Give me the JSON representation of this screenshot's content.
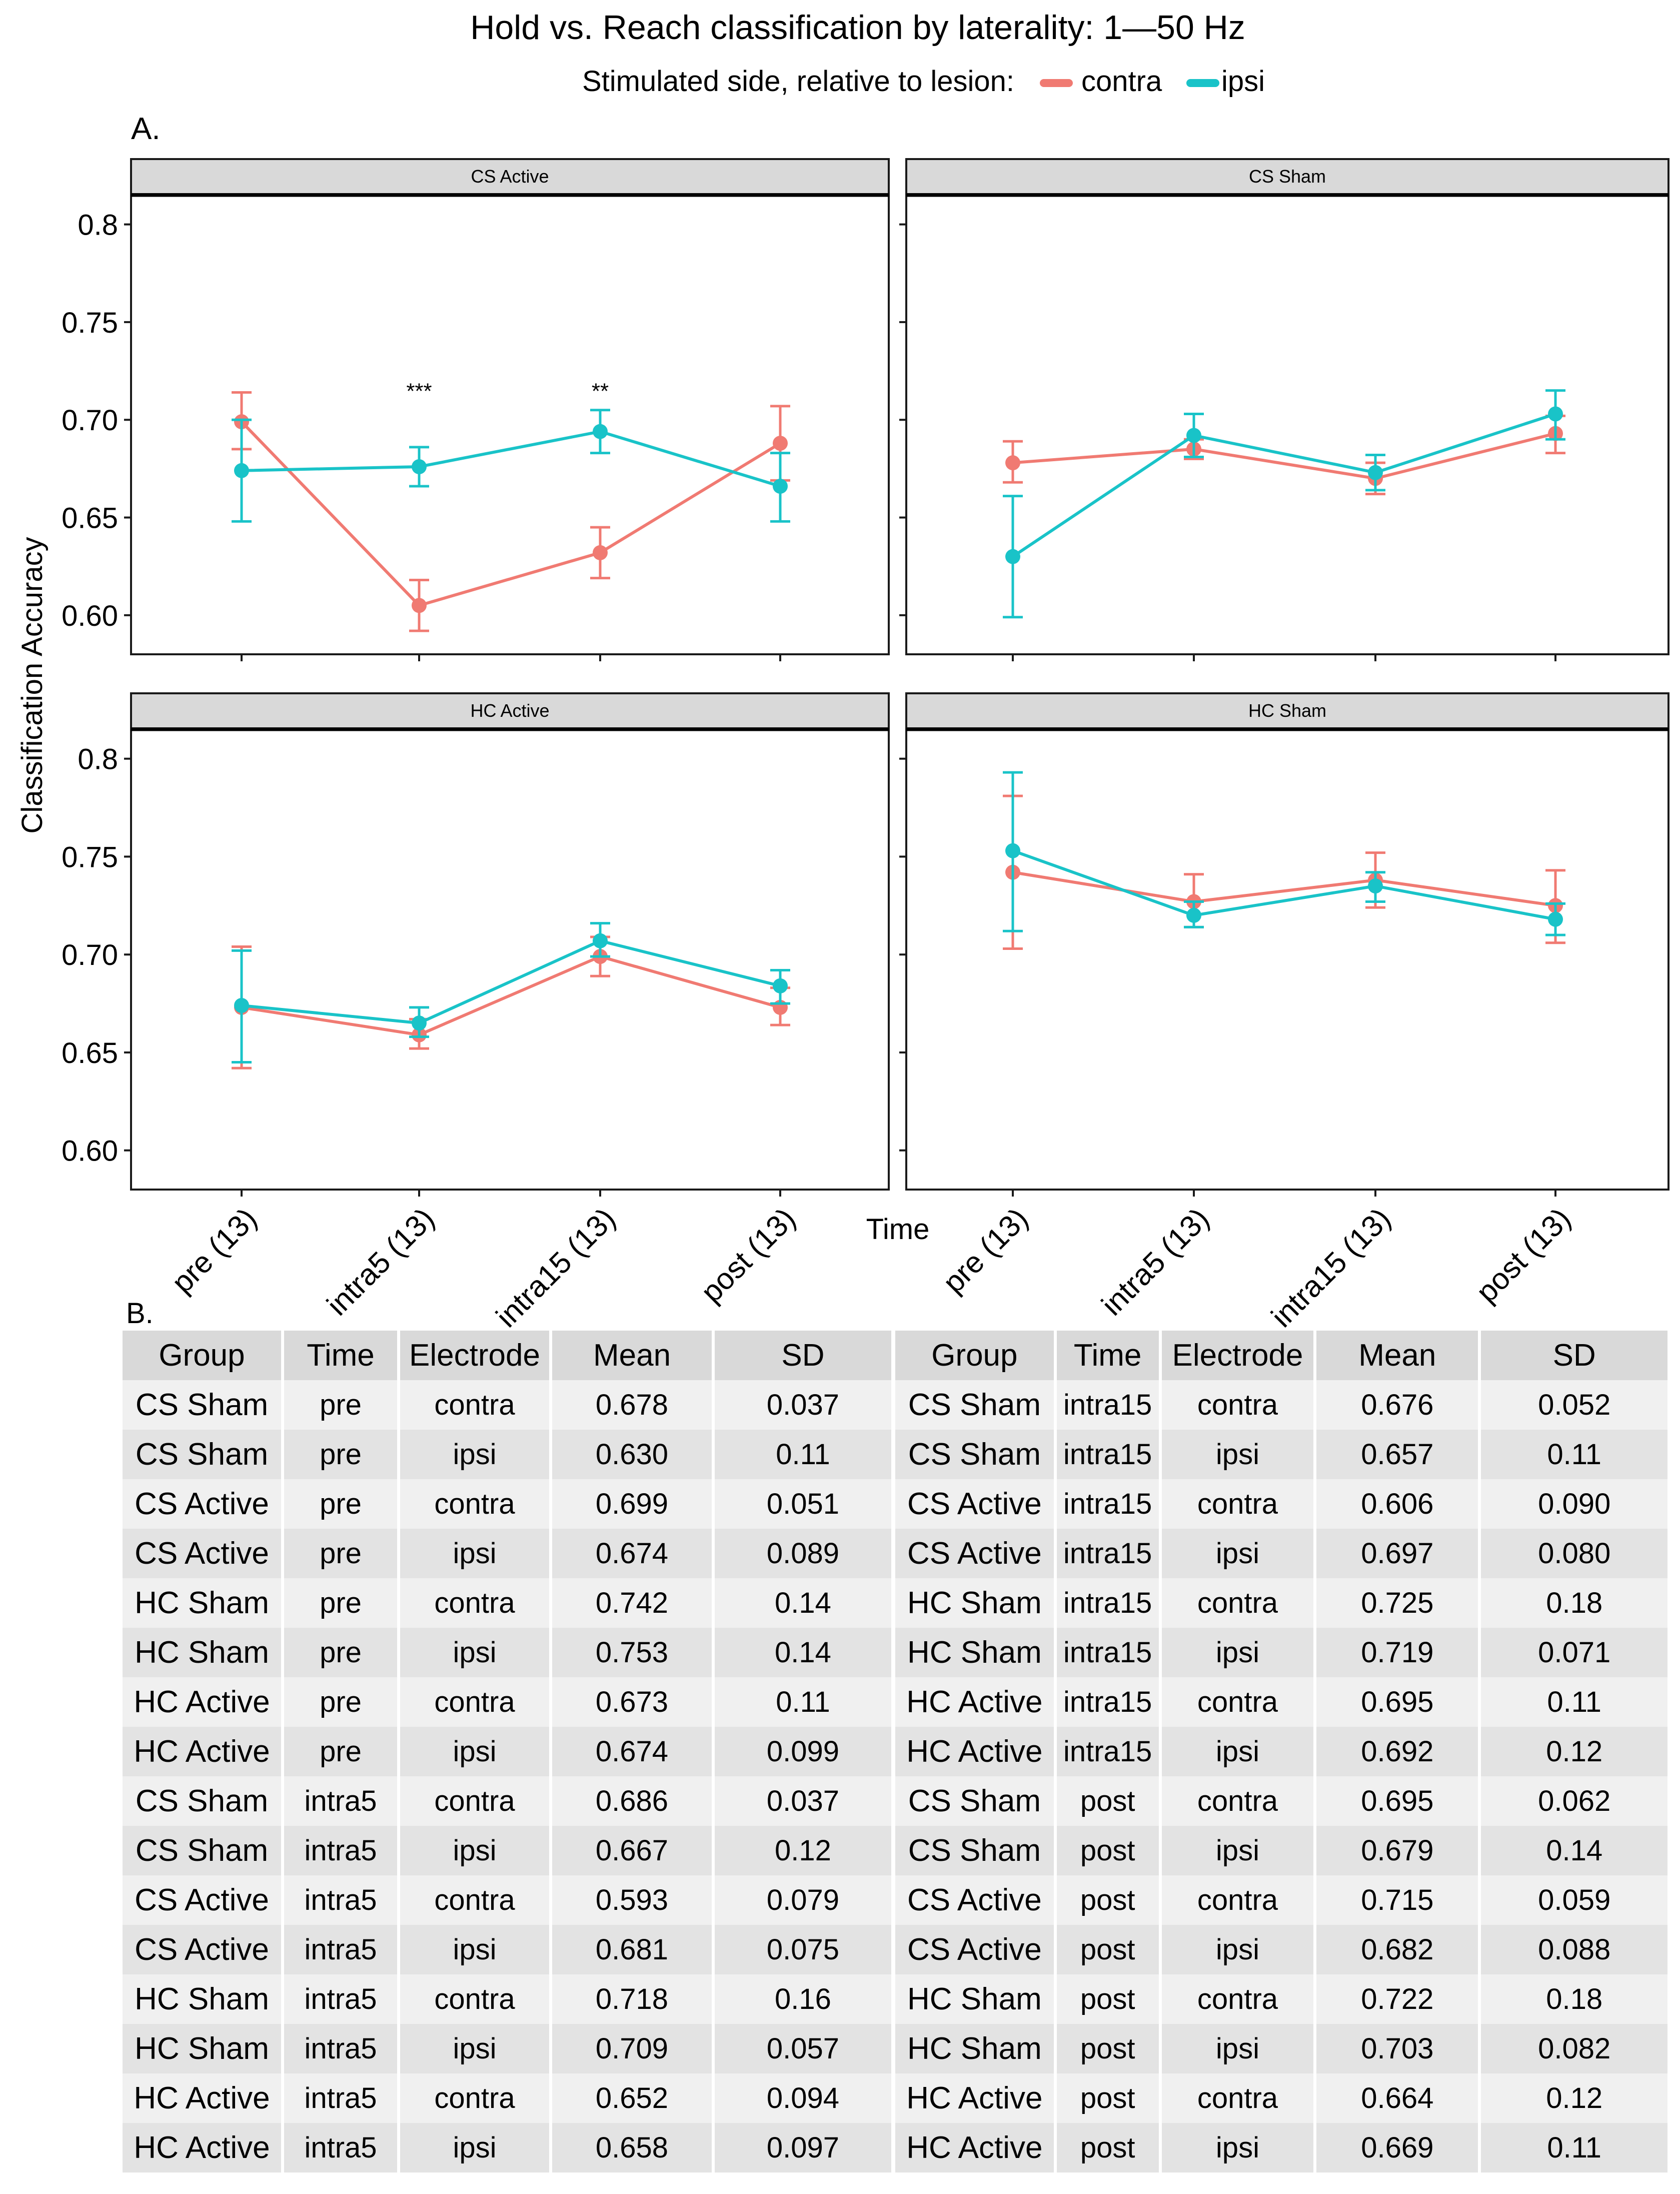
{
  "title": "Hold vs. Reach classification by laterality: 1—50 Hz",
  "legend": {
    "label": "Stimulated side, relative to lesion:",
    "entries": [
      {
        "name": "contra",
        "color": "#F07A72"
      },
      {
        "name": "ipsi",
        "color": "#19C3C8"
      }
    ]
  },
  "panel_a_label": "A.",
  "panel_b_label": "B.",
  "y_axis_title": "Classification Accuracy",
  "x_axis_title": "Time",
  "chart_data": {
    "type": "line",
    "ylim": [
      0.58,
      0.815
    ],
    "yticks": [
      "0.8",
      "0.75",
      "0.70",
      "0.65",
      "0.60"
    ],
    "ytick_values": [
      0.8,
      0.75,
      0.7,
      0.65,
      0.6
    ],
    "categories": [
      "pre (13)",
      "intra5 (13)",
      "intra15 (13)",
      "post (13)"
    ],
    "facets": [
      {
        "title": "CS Active",
        "annotations": [
          {
            "category_index": 1,
            "text": "***",
            "y": 0.714
          },
          {
            "category_index": 2,
            "text": "**",
            "y": 0.714
          }
        ],
        "series": [
          {
            "name": "contra",
            "values": [
              0.699,
              0.605,
              0.632,
              0.688
            ],
            "err_low": [
              0.685,
              0.592,
              0.619,
              0.669
            ],
            "err_high": [
              0.714,
              0.618,
              0.645,
              0.707
            ]
          },
          {
            "name": "ipsi",
            "values": [
              0.674,
              0.676,
              0.694,
              0.666
            ],
            "err_low": [
              0.648,
              0.666,
              0.683,
              0.648
            ],
            "err_high": [
              0.7,
              0.686,
              0.705,
              0.683
            ]
          }
        ]
      },
      {
        "title": "CS Sham",
        "annotations": [],
        "series": [
          {
            "name": "contra",
            "values": [
              0.678,
              0.685,
              0.67,
              0.693
            ],
            "err_low": [
              0.668,
              0.68,
              0.662,
              0.683
            ],
            "err_high": [
              0.689,
              0.69,
              0.678,
              0.702
            ]
          },
          {
            "name": "ipsi",
            "values": [
              0.63,
              0.692,
              0.673,
              0.703
            ],
            "err_low": [
              0.599,
              0.681,
              0.664,
              0.69
            ],
            "err_high": [
              0.661,
              0.703,
              0.682,
              0.715
            ]
          }
        ]
      },
      {
        "title": "HC Active",
        "annotations": [],
        "series": [
          {
            "name": "contra",
            "values": [
              0.673,
              0.659,
              0.699,
              0.673
            ],
            "err_low": [
              0.642,
              0.652,
              0.689,
              0.664
            ],
            "err_high": [
              0.704,
              0.667,
              0.709,
              0.683
            ]
          },
          {
            "name": "ipsi",
            "values": [
              0.674,
              0.665,
              0.707,
              0.684
            ],
            "err_low": [
              0.645,
              0.658,
              0.699,
              0.675
            ],
            "err_high": [
              0.702,
              0.673,
              0.716,
              0.692
            ]
          }
        ]
      },
      {
        "title": "HC Sham",
        "annotations": [],
        "series": [
          {
            "name": "contra",
            "values": [
              0.742,
              0.727,
              0.738,
              0.725
            ],
            "err_low": [
              0.703,
              0.714,
              0.724,
              0.706
            ],
            "err_high": [
              0.781,
              0.741,
              0.752,
              0.743
            ]
          },
          {
            "name": "ipsi",
            "values": [
              0.753,
              0.72,
              0.735,
              0.718
            ],
            "err_low": [
              0.712,
              0.714,
              0.727,
              0.71
            ],
            "err_high": [
              0.793,
              0.727,
              0.742,
              0.726
            ]
          }
        ]
      }
    ]
  },
  "table": {
    "headers": [
      "Group",
      "Time",
      "Electrode",
      "Mean",
      "SD"
    ],
    "left_rows": [
      [
        "CS Sham",
        "pre",
        "contra",
        "0.678",
        "0.037"
      ],
      [
        "CS Sham",
        "pre",
        "ipsi",
        "0.630",
        "0.11"
      ],
      [
        "CS Active",
        "pre",
        "contra",
        "0.699",
        "0.051"
      ],
      [
        "CS Active",
        "pre",
        "ipsi",
        "0.674",
        "0.089"
      ],
      [
        "HC Sham",
        "pre",
        "contra",
        "0.742",
        "0.14"
      ],
      [
        "HC Sham",
        "pre",
        "ipsi",
        "0.753",
        "0.14"
      ],
      [
        "HC Active",
        "pre",
        "contra",
        "0.673",
        "0.11"
      ],
      [
        "HC Active",
        "pre",
        "ipsi",
        "0.674",
        "0.099"
      ],
      [
        "CS Sham",
        "intra5",
        "contra",
        "0.686",
        "0.037"
      ],
      [
        "CS Sham",
        "intra5",
        "ipsi",
        "0.667",
        "0.12"
      ],
      [
        "CS Active",
        "intra5",
        "contra",
        "0.593",
        "0.079"
      ],
      [
        "CS Active",
        "intra5",
        "ipsi",
        "0.681",
        "0.075"
      ],
      [
        "HC Sham",
        "intra5",
        "contra",
        "0.718",
        "0.16"
      ],
      [
        "HC Sham",
        "intra5",
        "ipsi",
        "0.709",
        "0.057"
      ],
      [
        "HC Active",
        "intra5",
        "contra",
        "0.652",
        "0.094"
      ],
      [
        "HC Active",
        "intra5",
        "ipsi",
        "0.658",
        "0.097"
      ]
    ],
    "right_rows": [
      [
        "CS Sham",
        "intra15",
        "contra",
        "0.676",
        "0.052"
      ],
      [
        "CS Sham",
        "intra15",
        "ipsi",
        "0.657",
        "0.11"
      ],
      [
        "CS Active",
        "intra15",
        "contra",
        "0.606",
        "0.090"
      ],
      [
        "CS Active",
        "intra15",
        "ipsi",
        "0.697",
        "0.080"
      ],
      [
        "HC Sham",
        "intra15",
        "contra",
        "0.725",
        "0.18"
      ],
      [
        "HC Sham",
        "intra15",
        "ipsi",
        "0.719",
        "0.071"
      ],
      [
        "HC Active",
        "intra15",
        "contra",
        "0.695",
        "0.11"
      ],
      [
        "HC Active",
        "intra15",
        "ipsi",
        "0.692",
        "0.12"
      ],
      [
        "CS Sham",
        "post",
        "contra",
        "0.695",
        "0.062"
      ],
      [
        "CS Sham",
        "post",
        "ipsi",
        "0.679",
        "0.14"
      ],
      [
        "CS Active",
        "post",
        "contra",
        "0.715",
        "0.059"
      ],
      [
        "CS Active",
        "post",
        "ipsi",
        "0.682",
        "0.088"
      ],
      [
        "HC Sham",
        "post",
        "contra",
        "0.722",
        "0.18"
      ],
      [
        "HC Sham",
        "post",
        "ipsi",
        "0.703",
        "0.082"
      ],
      [
        "HC Active",
        "post",
        "contra",
        "0.664",
        "0.12"
      ],
      [
        "HC Active",
        "post",
        "ipsi",
        "0.669",
        "0.11"
      ]
    ]
  }
}
